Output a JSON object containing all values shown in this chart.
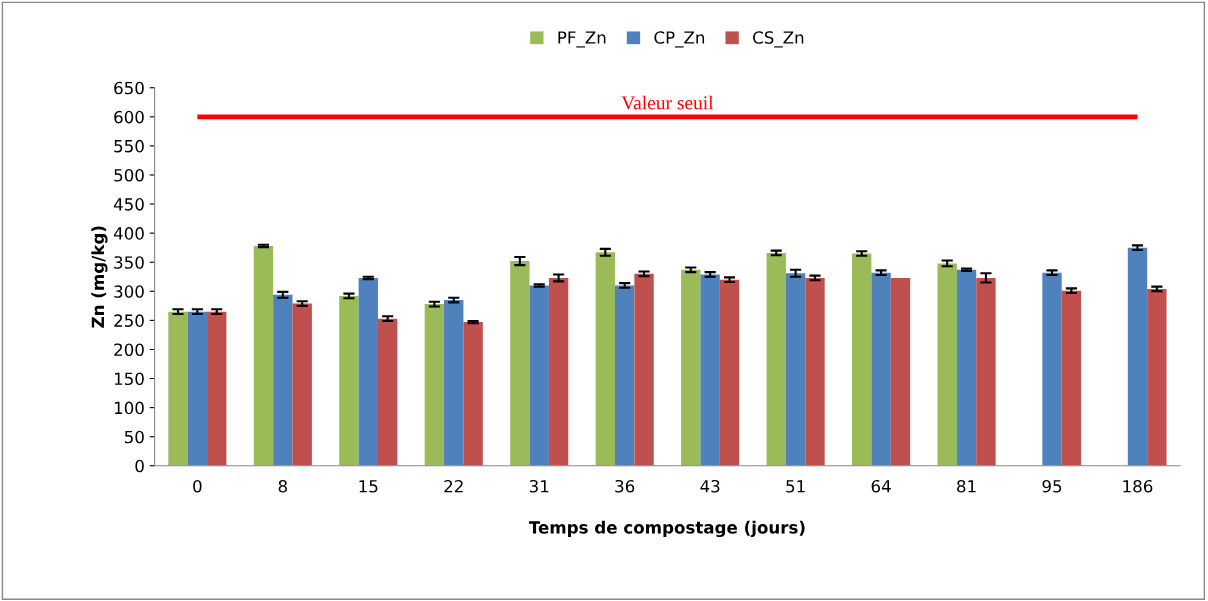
{
  "chart_data": {
    "type": "bar",
    "xlabel": "Temps de compostage (jours)",
    "ylabel": "Zn (mg/kg)",
    "categories": [
      "0",
      "8",
      "15",
      "22",
      "31",
      "36",
      "43",
      "51",
      "64",
      "81",
      "95",
      "186"
    ],
    "series": [
      {
        "name": "PF_Zn",
        "color": "#9bbb59",
        "values": [
          265,
          378,
          292,
          278,
          352,
          367,
          337,
          366,
          365,
          348,
          null,
          null
        ],
        "errors": [
          4,
          2,
          4,
          4,
          7,
          6,
          4,
          4,
          4,
          5,
          null,
          null
        ]
      },
      {
        "name": "CP_Zn",
        "color": "#4f81bd",
        "values": [
          265,
          294,
          323,
          285,
          310,
          310,
          329,
          331,
          332,
          337,
          332,
          375
        ],
        "errors": [
          4,
          5,
          2,
          4,
          2,
          4,
          4,
          6,
          4,
          2,
          4,
          4
        ]
      },
      {
        "name": "CS_Zn",
        "color": "#c0504d",
        "values": [
          265,
          279,
          253,
          247,
          323,
          330,
          320,
          323,
          323,
          323,
          301,
          304
        ],
        "errors": [
          4,
          4,
          4,
          2,
          6,
          4,
          4,
          4,
          null,
          8,
          4,
          4
        ]
      }
    ],
    "ylim": [
      0,
      650
    ],
    "yticks": [
      0,
      50,
      100,
      150,
      200,
      250,
      300,
      350,
      400,
      450,
      500,
      550,
      600,
      650
    ],
    "ref_lines": [
      {
        "axis": "y",
        "value": 600,
        "label": "Valeur seuil",
        "color": "#ff0000"
      }
    ],
    "grid": false,
    "legend": "top"
  }
}
